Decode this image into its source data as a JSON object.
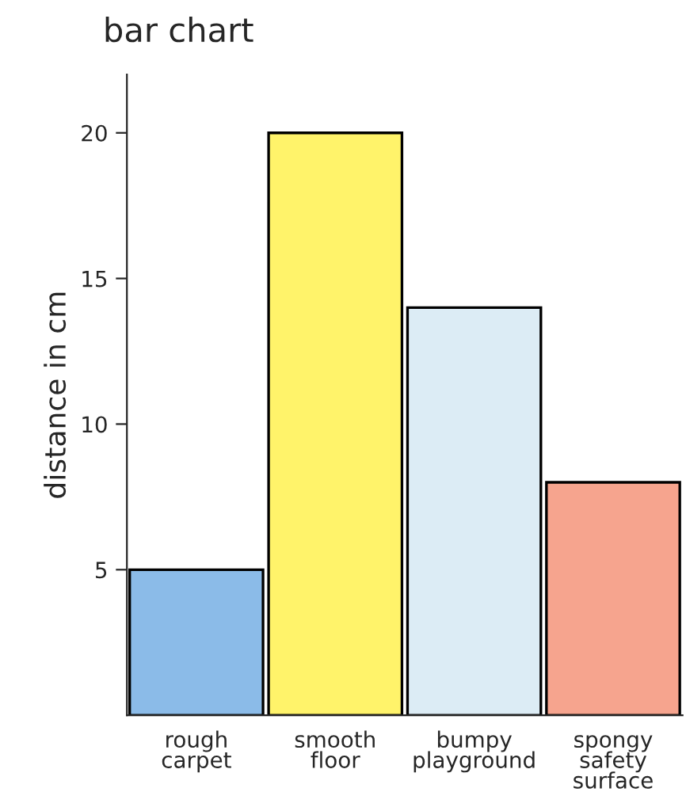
{
  "chart_data": {
    "type": "bar",
    "title": "bar chart",
    "ylabel": "distance in cm",
    "categories": [
      "rough\ncarpet",
      "smooth\nfloor",
      "bumpy\nplayground",
      "spongy\nsafety\nsurface"
    ],
    "values": [
      5,
      20,
      14,
      8
    ],
    "colors": [
      "#8bbbe8",
      "#fff36a",
      "#dcecf5",
      "#f6a48e"
    ],
    "ylim": [
      0,
      22
    ],
    "yticks": [
      5,
      10,
      15,
      20
    ],
    "grid": false,
    "legend": false
  }
}
